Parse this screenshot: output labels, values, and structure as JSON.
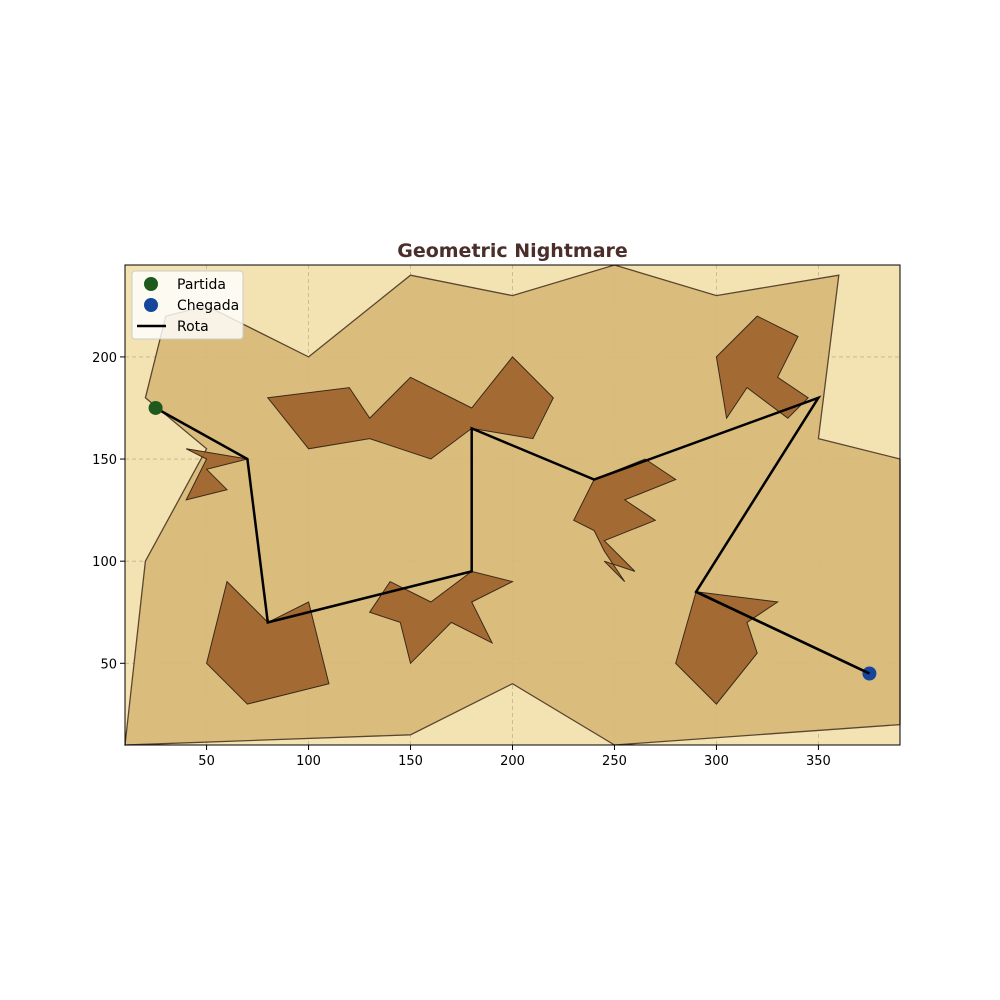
{
  "chart_data": {
    "type": "map",
    "title": "Geometric Nightmare",
    "xlim": [
      10,
      390
    ],
    "ylim": [
      10,
      245
    ],
    "x_ticks": [
      50,
      100,
      150,
      200,
      250,
      300,
      350
    ],
    "y_ticks": [
      50,
      100,
      150,
      200
    ],
    "grid": true,
    "legend_position": "top-left",
    "legend": [
      {
        "key": "start",
        "label": "Partida"
      },
      {
        "key": "goal",
        "label": "Chegada"
      },
      {
        "key": "route",
        "label": "Rota"
      }
    ],
    "colors": {
      "background": "#f3e2b2",
      "free_area": "#d8b878",
      "obstacle": "#a0652f",
      "outline": "#5a4630",
      "route": "#000000",
      "start": "#1e5a1e",
      "goal": "#14469b",
      "title": "#4a2e2a",
      "grid": "#b0a080"
    },
    "free_area": [
      [
        10,
        10
      ],
      [
        150,
        15
      ],
      [
        200,
        40
      ],
      [
        250,
        10
      ],
      [
        390,
        20
      ],
      [
        390,
        150
      ],
      [
        350,
        160
      ],
      [
        360,
        240
      ],
      [
        300,
        230
      ],
      [
        250,
        245
      ],
      [
        200,
        230
      ],
      [
        150,
        240
      ],
      [
        100,
        200
      ],
      [
        50,
        225
      ],
      [
        30,
        220
      ],
      [
        20,
        180
      ],
      [
        50,
        155
      ],
      [
        20,
        100
      ],
      [
        10,
        10
      ]
    ],
    "obstacles": [
      [
        [
          80,
          180
        ],
        [
          120,
          185
        ],
        [
          130,
          170
        ],
        [
          150,
          190
        ],
        [
          180,
          175
        ],
        [
          200,
          200
        ],
        [
          220,
          180
        ],
        [
          210,
          160
        ],
        [
          180,
          165
        ],
        [
          160,
          150
        ],
        [
          130,
          160
        ],
        [
          100,
          155
        ]
      ],
      [
        [
          300,
          200
        ],
        [
          320,
          220
        ],
        [
          340,
          210
        ],
        [
          330,
          190
        ],
        [
          345,
          180
        ],
        [
          335,
          170
        ],
        [
          315,
          185
        ],
        [
          305,
          170
        ]
      ],
      [
        [
          40,
          155
        ],
        [
          70,
          150
        ],
        [
          50,
          145
        ],
        [
          60,
          135
        ],
        [
          40,
          130
        ],
        [
          50,
          150
        ]
      ],
      [
        [
          240,
          140
        ],
        [
          265,
          150
        ],
        [
          280,
          140
        ],
        [
          255,
          130
        ],
        [
          270,
          120
        ],
        [
          245,
          110
        ],
        [
          260,
          95
        ],
        [
          245,
          100
        ],
        [
          255,
          90
        ],
        [
          245,
          105
        ],
        [
          240,
          115
        ],
        [
          230,
          120
        ]
      ],
      [
        [
          60,
          90
        ],
        [
          50,
          50
        ],
        [
          70,
          30
        ],
        [
          110,
          40
        ],
        [
          100,
          80
        ],
        [
          80,
          70
        ]
      ],
      [
        [
          130,
          75
        ],
        [
          140,
          90
        ],
        [
          160,
          80
        ],
        [
          180,
          95
        ],
        [
          200,
          90
        ],
        [
          180,
          80
        ],
        [
          190,
          60
        ],
        [
          170,
          70
        ],
        [
          150,
          50
        ],
        [
          145,
          70
        ]
      ],
      [
        [
          290,
          85
        ],
        [
          330,
          80
        ],
        [
          315,
          70
        ],
        [
          320,
          55
        ],
        [
          300,
          30
        ],
        [
          280,
          50
        ]
      ]
    ],
    "route": {
      "x": [
        25,
        70,
        80,
        180,
        180,
        240,
        350,
        290,
        375
      ],
      "y": [
        175,
        150,
        70,
        95,
        165,
        140,
        180,
        85,
        45
      ]
    },
    "start": {
      "x": 25,
      "y": 175
    },
    "goal": {
      "x": 375,
      "y": 45
    }
  }
}
